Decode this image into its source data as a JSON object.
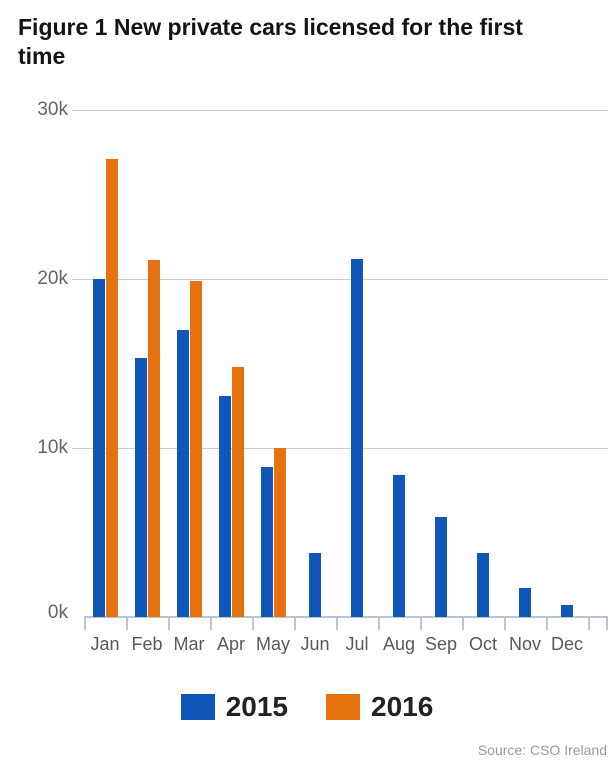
{
  "title": "Figure 1 New private cars licensed for the first time",
  "source": "Source: CSO Ireland",
  "colors": {
    "series_2015": "#1156b9",
    "series_2016": "#e5710f",
    "gridline": "#cccccc",
    "axis": "#b6c6d6",
    "label": "#666666",
    "title_text": "#141414",
    "source_text": "#999999"
  },
  "legend": {
    "items": [
      {
        "label": "2015",
        "color": "#1156b9"
      },
      {
        "label": "2016",
        "color": "#e5710f"
      }
    ]
  },
  "chart_data": {
    "type": "bar",
    "title": "Figure 1 New private cars licensed for the first time",
    "categories": [
      "Jan",
      "Feb",
      "Mar",
      "Apr",
      "May",
      "Jun",
      "Jul",
      "Aug",
      "Sep",
      "Oct",
      "Nov",
      "Dec"
    ],
    "series": [
      {
        "name": "2015",
        "color": "#1156b9",
        "values": [
          20000,
          15300,
          17000,
          13100,
          8900,
          3800,
          21200,
          8400,
          5900,
          3800,
          1700,
          700
        ]
      },
      {
        "name": "2016",
        "color": "#e5710f",
        "values": [
          27100,
          21100,
          19900,
          14800,
          10000,
          null,
          null,
          null,
          null,
          null,
          null,
          null
        ]
      }
    ],
    "xlabel": "",
    "ylabel": "",
    "ylim": [
      0,
      30000
    ],
    "ytick_values": [
      0,
      10000,
      20000,
      30000
    ],
    "ytick_labels": [
      "0k",
      "10k",
      "20k",
      "30k"
    ],
    "grid": true,
    "legend_position": "bottom",
    "source": "Source: CSO Ireland"
  }
}
